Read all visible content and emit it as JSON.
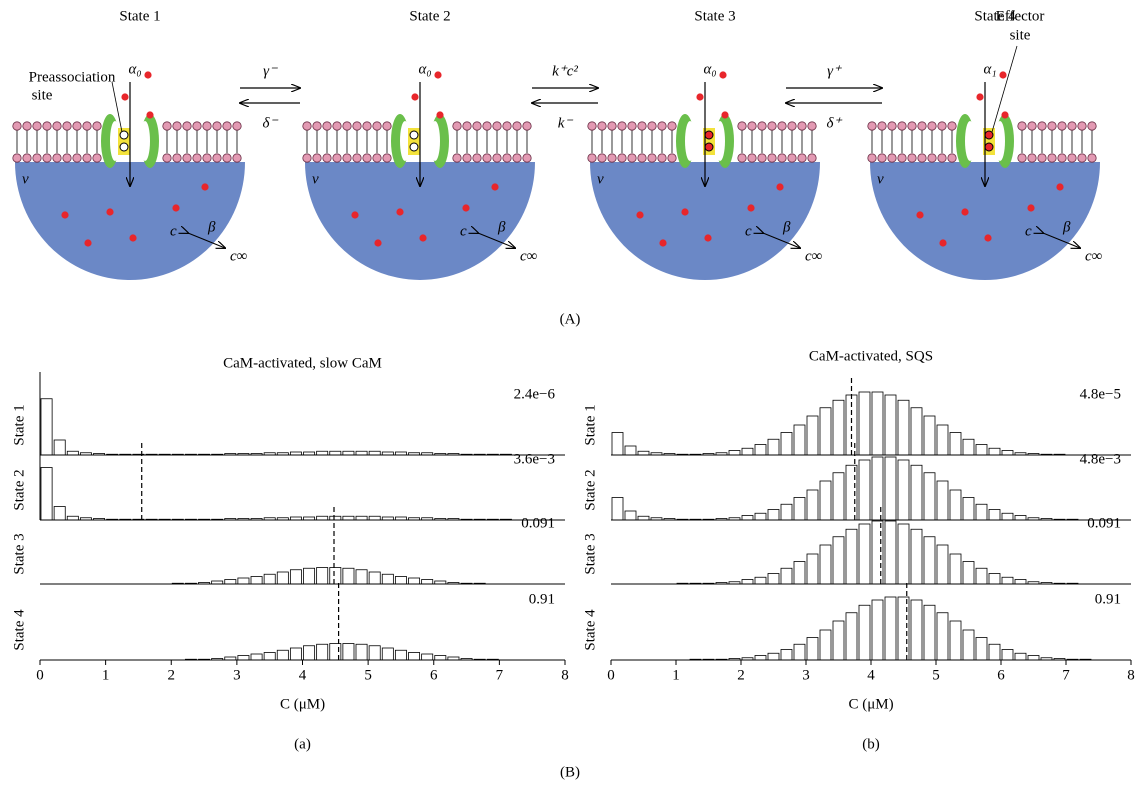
{
  "figure_A": {
    "states": [
      {
        "title": "State 1",
        "alpha": "α₀"
      },
      {
        "title": "State 2",
        "alpha": "α₀"
      },
      {
        "title": "State 3",
        "alpha": "α₀"
      },
      {
        "title": "State 4",
        "alpha": "α₁"
      }
    ],
    "transitions": [
      {
        "forward": "γ⁻",
        "backward": "δ⁻"
      },
      {
        "forward": "k⁺c²",
        "backward": "k⁻"
      },
      {
        "forward": "γ⁺",
        "backward": "δ⁺"
      }
    ],
    "preassociation_site": [
      "Preassociation",
      "site"
    ],
    "effector_site": [
      "Effector",
      "site"
    ],
    "labels": {
      "volume": "ν",
      "concentration": "c",
      "exchange": "β",
      "bulk": "c∞"
    },
    "caption": "(A)"
  },
  "chart_data": [
    {
      "type": "histogram",
      "title": "CaM-activated, slow CaM",
      "xlabel": "C (μM)",
      "caption": "(a)",
      "xlim": [
        0,
        8
      ],
      "xticks": [
        0,
        1,
        2,
        3,
        4,
        5,
        6,
        7,
        8
      ],
      "ylim": [
        0,
        1
      ],
      "bins": [
        0,
        0.2,
        0.4,
        0.6,
        0.8,
        1,
        1.2,
        1.4,
        1.6,
        1.8,
        2,
        2.2,
        2.4,
        2.6,
        2.8,
        3,
        3.2,
        3.4,
        3.6,
        3.8,
        4,
        4.2,
        4.4,
        4.6,
        4.8,
        5,
        5.2,
        5.4,
        5.6,
        5.8,
        6,
        6.2,
        6.4,
        6.6,
        6.8,
        7,
        7.2,
        7.4,
        7.6,
        7.8,
        8
      ],
      "series": [
        {
          "name": "State 1",
          "label": "2.4e−6",
          "values": [
            0.75,
            0.2,
            0.05,
            0.03,
            0.02,
            0.01,
            0.01,
            0.01,
            0.01,
            0.01,
            0.01,
            0.01,
            0.01,
            0.01,
            0.02,
            0.02,
            0.02,
            0.03,
            0.03,
            0.04,
            0.04,
            0.05,
            0.05,
            0.05,
            0.05,
            0.05,
            0.04,
            0.04,
            0.03,
            0.03,
            0.02,
            0.02,
            0.01,
            0.01,
            0.01,
            0.01,
            0,
            0,
            0,
            0
          ]
        },
        {
          "name": "State 2",
          "label": "3.6e−3",
          "marker": 1.55,
          "values": [
            0.7,
            0.18,
            0.05,
            0.03,
            0.02,
            0.01,
            0.01,
            0.01,
            0.01,
            0.01,
            0.01,
            0.01,
            0.01,
            0.01,
            0.02,
            0.02,
            0.02,
            0.03,
            0.03,
            0.04,
            0.04,
            0.05,
            0.05,
            0.05,
            0.05,
            0.05,
            0.04,
            0.04,
            0.03,
            0.03,
            0.02,
            0.02,
            0.01,
            0.01,
            0.01,
            0.01,
            0,
            0,
            0,
            0
          ]
        },
        {
          "name": "State 3",
          "label": "0.091",
          "marker": 4.48,
          "values": [
            0,
            0,
            0,
            0,
            0,
            0,
            0,
            0,
            0,
            0,
            0.01,
            0.01,
            0.02,
            0.04,
            0.06,
            0.08,
            0.1,
            0.13,
            0.16,
            0.19,
            0.21,
            0.22,
            0.22,
            0.21,
            0.19,
            0.16,
            0.13,
            0.1,
            0.08,
            0.06,
            0.04,
            0.02,
            0.01,
            0.01,
            0,
            0,
            0,
            0,
            0,
            0
          ]
        },
        {
          "name": "State 4",
          "label": "0.91",
          "marker": 4.55,
          "values": [
            0,
            0,
            0,
            0,
            0,
            0,
            0,
            0,
            0,
            0,
            0,
            0.01,
            0.01,
            0.02,
            0.04,
            0.06,
            0.08,
            0.1,
            0.13,
            0.16,
            0.19,
            0.21,
            0.22,
            0.22,
            0.21,
            0.19,
            0.16,
            0.13,
            0.1,
            0.08,
            0.06,
            0.04,
            0.02,
            0.01,
            0.01,
            0,
            0,
            0,
            0,
            0
          ]
        }
      ]
    },
    {
      "type": "histogram",
      "title": "CaM-activated, SQS",
      "xlabel": "C (μM)",
      "caption": "(b)",
      "xlim": [
        0,
        8
      ],
      "xticks": [
        0,
        1,
        2,
        3,
        4,
        5,
        6,
        7,
        8
      ],
      "ylim": [
        0,
        1
      ],
      "bins": [
        0,
        0.2,
        0.4,
        0.6,
        0.8,
        1,
        1.2,
        1.4,
        1.6,
        1.8,
        2,
        2.2,
        2.4,
        2.6,
        2.8,
        3,
        3.2,
        3.4,
        3.6,
        3.8,
        4,
        4.2,
        4.4,
        4.6,
        4.8,
        5,
        5.2,
        5.4,
        5.6,
        5.8,
        6,
        6.2,
        6.4,
        6.6,
        6.8,
        7,
        7.2,
        7.4,
        7.6,
        7.8,
        8
      ],
      "series": [
        {
          "name": "State 1",
          "label": "4.8e−5",
          "marker": 3.7,
          "values": [
            0.3,
            0.12,
            0.05,
            0.03,
            0.02,
            0.01,
            0.01,
            0.02,
            0.03,
            0.06,
            0.09,
            0.14,
            0.21,
            0.3,
            0.4,
            0.52,
            0.63,
            0.73,
            0.8,
            0.84,
            0.84,
            0.8,
            0.73,
            0.63,
            0.52,
            0.4,
            0.3,
            0.21,
            0.14,
            0.09,
            0.06,
            0.03,
            0.02,
            0.01,
            0.01,
            0,
            0,
            0,
            0,
            0
          ]
        },
        {
          "name": "State 2",
          "label": "4.8e−3",
          "marker": 3.75,
          "values": [
            0.3,
            0.12,
            0.05,
            0.03,
            0.02,
            0.01,
            0.01,
            0.01,
            0.02,
            0.03,
            0.06,
            0.09,
            0.14,
            0.21,
            0.3,
            0.4,
            0.52,
            0.63,
            0.73,
            0.8,
            0.84,
            0.84,
            0.8,
            0.73,
            0.63,
            0.52,
            0.4,
            0.3,
            0.21,
            0.14,
            0.09,
            0.06,
            0.03,
            0.02,
            0.01,
            0.01,
            0,
            0,
            0,
            0
          ]
        },
        {
          "name": "State 3",
          "label": "0.091",
          "marker": 4.15,
          "values": [
            0,
            0,
            0,
            0,
            0,
            0.01,
            0.01,
            0.01,
            0.02,
            0.03,
            0.06,
            0.09,
            0.14,
            0.21,
            0.3,
            0.4,
            0.52,
            0.63,
            0.73,
            0.8,
            0.84,
            0.84,
            0.8,
            0.73,
            0.63,
            0.52,
            0.4,
            0.3,
            0.21,
            0.14,
            0.09,
            0.06,
            0.03,
            0.02,
            0.01,
            0.01,
            0,
            0,
            0,
            0
          ]
        },
        {
          "name": "State 4",
          "label": "0.91",
          "marker": 4.55,
          "values": [
            0,
            0,
            0,
            0,
            0,
            0,
            0.01,
            0.01,
            0.01,
            0.02,
            0.03,
            0.06,
            0.09,
            0.14,
            0.21,
            0.3,
            0.4,
            0.52,
            0.63,
            0.73,
            0.8,
            0.84,
            0.84,
            0.8,
            0.73,
            0.63,
            0.52,
            0.4,
            0.3,
            0.21,
            0.14,
            0.09,
            0.06,
            0.03,
            0.02,
            0.01,
            0.01,
            0,
            0,
            0
          ]
        }
      ]
    }
  ],
  "caption_B": "(B)"
}
